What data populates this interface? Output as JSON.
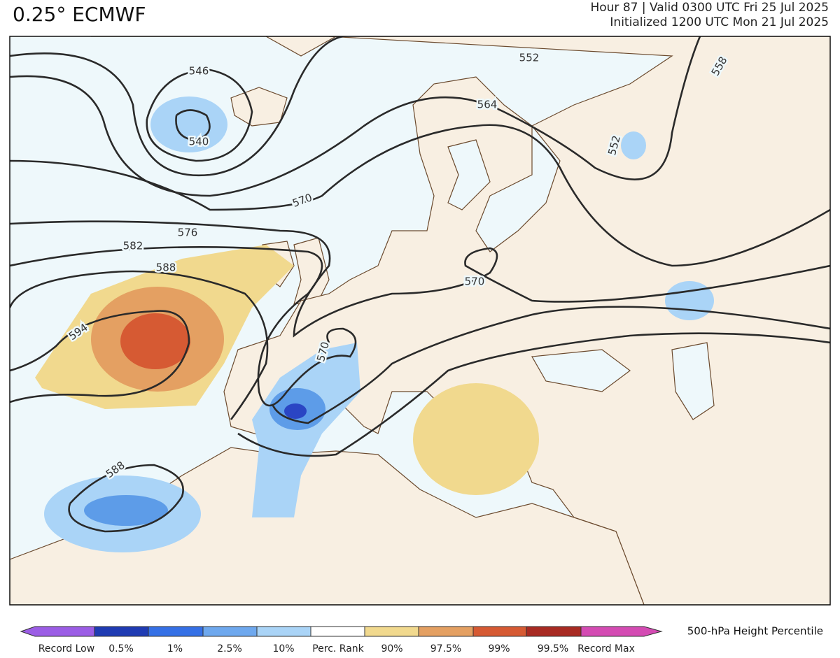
{
  "header": {
    "title": "0.25° ECMWF",
    "valid": "Hour 87 | Valid 0300 UTC Fri 25 Jul 2025",
    "init": "Initialized 1200 UTC Mon 21 Jul 2025"
  },
  "map": {
    "contour_labels": [
      "546",
      "540",
      "552",
      "558",
      "552",
      "564",
      "570",
      "576",
      "582",
      "588",
      "594",
      "570",
      "570",
      "588"
    ]
  },
  "colorbar": {
    "title": "500-hPa Height Percentile",
    "labels": [
      "Record Low",
      "0.5%",
      "1%",
      "2.5%",
      "10%",
      "Perc. Rank",
      "90%",
      "97.5%",
      "99%",
      "99.5%",
      "Record Max"
    ]
  }
}
